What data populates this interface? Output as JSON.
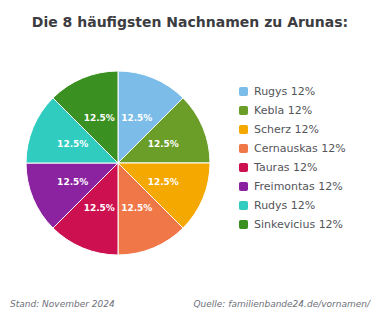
{
  "chart_data": {
    "type": "pie",
    "title": "Die 8 häufigsten Nachnamen zu Arunas:",
    "categories": [
      "Rugys 12%",
      "Kebla 12%",
      "Scherz 12%",
      "Cernauskas 12%",
      "Tauras 12%",
      "Freimontas 12%",
      "Rudys 12%",
      "Sinkevicius 12%"
    ],
    "values": [
      12.5,
      12.5,
      12.5,
      12.5,
      12.5,
      12.5,
      12.5,
      12.5
    ],
    "value_labels": [
      "12.5%",
      "12.5%",
      "12.5%",
      "12.5%",
      "12.5%",
      "12.5%",
      "12.5%",
      "12.5%"
    ],
    "data_labels": true,
    "colors": [
      "#7BBDE8",
      "#6B9E28",
      "#F5A800",
      "#F07848",
      "#CC1050",
      "#8B22A0",
      "#30CCC0",
      "#3A9020"
    ],
    "legend": "right",
    "annotations": [
      "Stand: November 2024",
      "Quelle: familienbande24.de/vornamen/"
    ]
  }
}
